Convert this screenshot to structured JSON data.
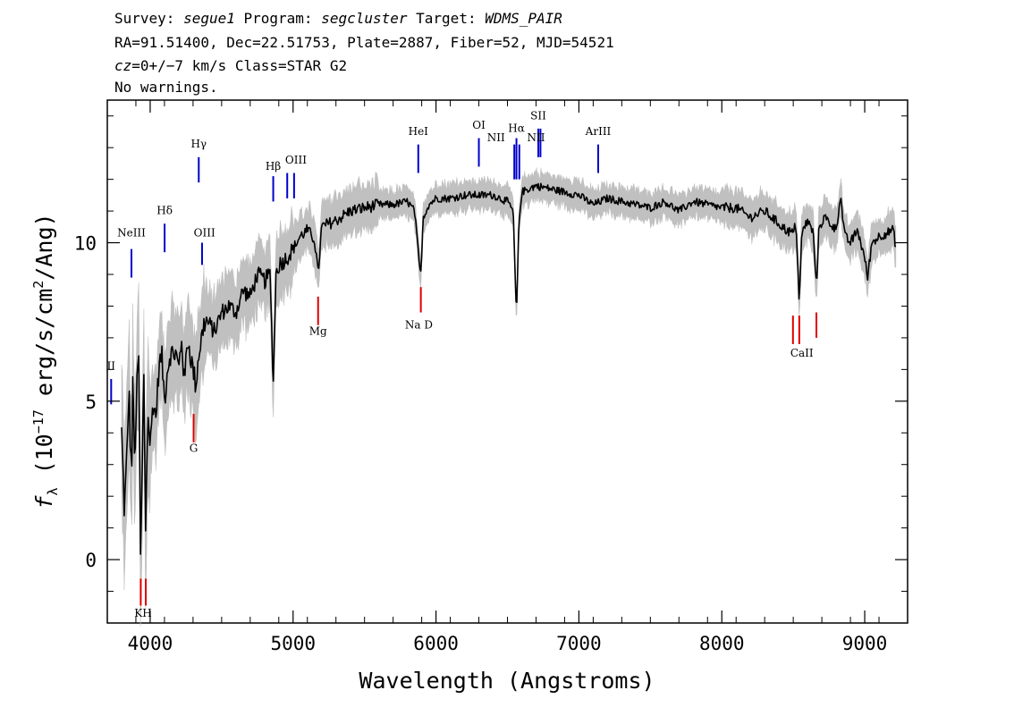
{
  "header": {
    "line1": {
      "survey_label": "Survey: ",
      "survey": "segue1",
      "program_label": " Program: ",
      "program": "segcluster",
      "target_label": " Target: ",
      "target": "WDMS_PAIR"
    },
    "line2": "RA=91.51400, Dec=22.51753, Plate=2887, Fiber=52, MJD=54521",
    "line3": {
      "cz": "cz",
      "cz_value": "=0+/−7",
      "rest": " km/s Class=STAR G2"
    },
    "line4": "No warnings."
  },
  "chart_data": {
    "type": "line",
    "xlabel": "Wavelength (Angstroms)",
    "ylabel": {
      "f": "f",
      "sub": "λ",
      "pre": " (10",
      "exp": "−17",
      "mid": " erg/s/cm",
      "exp2": "2",
      "post": "/Ang)"
    },
    "xlim": [
      3700,
      9300
    ],
    "ylim": [
      -2,
      14.5
    ],
    "x_ticks": [
      4000,
      5000,
      6000,
      7000,
      8000,
      9000
    ],
    "x_tick_labels": [
      "4000",
      "5000",
      "6000",
      "7000",
      "8000",
      "9000"
    ],
    "y_ticks": [
      0,
      5,
      10
    ],
    "y_tick_labels": [
      "0",
      "5",
      "10"
    ],
    "colors": {
      "spectrum": "#000000",
      "error_band": "#c0c0c0",
      "emission": "#0000cc",
      "absorption": "#dd0000"
    },
    "series": [
      {
        "x": [
          3800,
          3820,
          3840,
          3850,
          3860,
          3870,
          3880,
          3890,
          3900,
          3910,
          3920,
          3933,
          3945,
          3955,
          3968,
          3980,
          3990,
          4000,
          4020,
          4040,
          4060,
          4080,
          4101,
          4120,
          4140,
          4160,
          4180,
          4200,
          4220,
          4240,
          4260,
          4280,
          4300,
          4320,
          4340,
          4360,
          4380,
          4400,
          4450,
          4500,
          4550,
          4600,
          4650,
          4700,
          4750,
          4800,
          4840,
          4861,
          4880,
          4900,
          4950,
          5000,
          5050,
          5100,
          5150,
          5175,
          5200,
          5250,
          5300,
          5400,
          5500,
          5600,
          5700,
          5800,
          5850,
          5880,
          5893,
          5910,
          5950,
          6000,
          6100,
          6200,
          6300,
          6400,
          6500,
          6540,
          6563,
          6580,
          6600,
          6650,
          6700,
          6800,
          6900,
          7000,
          7100,
          7200,
          7300,
          7400,
          7500,
          7600,
          7700,
          7800,
          7900,
          8000,
          8100,
          8200,
          8300,
          8400,
          8450,
          8498,
          8520,
          8542,
          8560,
          8600,
          8640,
          8662,
          8680,
          8720,
          8760,
          8800,
          8830,
          8860,
          8900,
          8950,
          9000,
          9020,
          9050,
          9100,
          9150,
          9200,
          9220
        ],
        "y": [
          4.0,
          1.5,
          3.5,
          5.5,
          4.0,
          2.5,
          6.0,
          3.0,
          4.5,
          5.5,
          6.5,
          -0.4,
          3.0,
          6.0,
          1.0,
          4.0,
          4.5,
          3.5,
          5.0,
          4.5,
          6.0,
          6.5,
          5.0,
          6.0,
          6.5,
          6.5,
          6.5,
          6.0,
          7.0,
          5.5,
          7.0,
          6.5,
          6.0,
          5.5,
          6.5,
          7.0,
          7.5,
          7.5,
          7.2,
          7.8,
          8.0,
          7.8,
          8.5,
          8.3,
          9.0,
          8.8,
          9.0,
          5.5,
          9.0,
          9.3,
          9.5,
          9.8,
          10.2,
          10.4,
          10.1,
          9.0,
          10.5,
          10.6,
          10.7,
          11.0,
          11.1,
          11.2,
          11.2,
          11.3,
          11.0,
          9.5,
          8.9,
          10.8,
          11.2,
          11.4,
          11.4,
          11.5,
          11.5,
          11.5,
          11.3,
          11.0,
          7.6,
          10.6,
          11.6,
          11.7,
          11.8,
          11.7,
          11.6,
          11.5,
          11.2,
          11.4,
          11.3,
          11.2,
          11.1,
          11.3,
          11.0,
          11.3,
          11.2,
          11.1,
          11.1,
          10.8,
          11.0,
          10.6,
          10.4,
          10.3,
          10.6,
          8.1,
          10.3,
          10.7,
          10.3,
          8.6,
          10.5,
          10.8,
          10.6,
          10.4,
          11.5,
          10.2,
          10.0,
          10.4,
          9.5,
          8.9,
          10.0,
          10.2,
          10.3,
          10.4,
          9.8
        ]
      }
    ],
    "emission_lines": [
      {
        "label": "MgII",
        "wave": 3727
      },
      {
        "label": "NeIII",
        "wave": 3869
      },
      {
        "label": "Hδ",
        "wave": 4101
      },
      {
        "label": "Hγ",
        "wave": 4340
      },
      {
        "label": "OIII",
        "wave": 4363
      },
      {
        "label": "Hβ",
        "wave": 4861
      },
      {
        "label": "OIII",
        "wave": 4959
      },
      {
        "label": "OIII",
        "wave": 5007
      },
      {
        "label": "HeI",
        "wave": 5876
      },
      {
        "label": "OI",
        "wave": 6300
      },
      {
        "label": "NII",
        "wave": 6548
      },
      {
        "label": "Hα",
        "wave": 6563
      },
      {
        "label": "NII",
        "wave": 6583
      },
      {
        "label": "SII",
        "wave": 6716
      },
      {
        "label": "SII",
        "wave": 6731
      },
      {
        "label": "ArIII",
        "wave": 7135
      }
    ],
    "absorption_lines": [
      {
        "label": "K",
        "wave": 3934
      },
      {
        "label": "H",
        "wave": 3969
      },
      {
        "label": "G",
        "wave": 4304
      },
      {
        "label": "Mg",
        "wave": 5175
      },
      {
        "label": "Na D",
        "wave": 5894
      },
      {
        "label": "CaII",
        "wave": 8498
      },
      {
        "label": "CaII",
        "wave": 8542
      },
      {
        "label": "CaII",
        "wave": 8662
      }
    ],
    "line_annotations": [
      {
        "text": "II",
        "wave": 3727,
        "y": 6.0,
        "color": "emission"
      },
      {
        "text": "NeIII",
        "wave": 3869,
        "y": 10.2,
        "color": "emission"
      },
      {
        "text": "Hδ",
        "wave": 4101,
        "y": 10.9,
        "color": "emission"
      },
      {
        "text": "Hγ",
        "wave": 4340,
        "y": 13.0,
        "color": "emission"
      },
      {
        "text": "OIII",
        "wave": 4380,
        "y": 10.2,
        "color": "emission"
      },
      {
        "text": "Hβ",
        "wave": 4861,
        "y": 12.3,
        "color": "emission"
      },
      {
        "text": "OIII",
        "wave": 5020,
        "y": 12.5,
        "color": "emission"
      },
      {
        "text": "HeI",
        "wave": 5876,
        "y": 13.4,
        "color": "emission"
      },
      {
        "text": "OI",
        "wave": 6300,
        "y": 13.6,
        "color": "emission"
      },
      {
        "text": "NII",
        "wave": 6420,
        "y": 13.2,
        "color": "emission"
      },
      {
        "text": "Hα",
        "wave": 6563,
        "y": 13.5,
        "color": "emission"
      },
      {
        "text": "NII",
        "wave": 6700,
        "y": 13.2,
        "color": "emission"
      },
      {
        "text": "SII",
        "wave": 6716,
        "y": 13.9,
        "color": "emission"
      },
      {
        "text": "ArIII",
        "wave": 7135,
        "y": 13.4,
        "color": "emission"
      },
      {
        "text": "KH",
        "wave": 3950,
        "y": -1.8,
        "color": "absorption"
      },
      {
        "text": "G",
        "wave": 4304,
        "y": 3.4,
        "color": "absorption"
      },
      {
        "text": "Mg",
        "wave": 5175,
        "y": 7.1,
        "color": "absorption"
      },
      {
        "text": "Na  D",
        "wave": 5880,
        "y": 7.3,
        "color": "absorption"
      },
      {
        "text": "CaII",
        "wave": 8560,
        "y": 6.4,
        "color": "absorption"
      }
    ]
  }
}
